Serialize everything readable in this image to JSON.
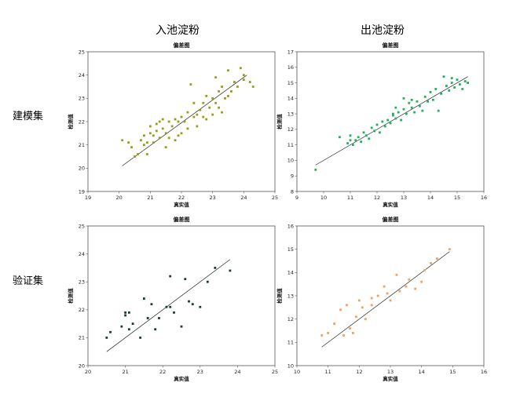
{
  "headers": {
    "col_left": "入池淀粉",
    "col_right": "出池淀粉",
    "row_top": "建模集",
    "row_bottom": "验证集"
  },
  "chart_data": [
    {
      "id": "in-model",
      "type": "scatter",
      "title": "偏差图",
      "xlabel": "真实值",
      "ylabel": "检测值",
      "xlim": [
        19,
        25
      ],
      "ylim": [
        19,
        25
      ],
      "xticks": [
        "19",
        "20",
        "21",
        "22",
        "23",
        "24",
        "25"
      ],
      "yticks": [
        "19",
        "20",
        "21",
        "22",
        "23",
        "24",
        "25"
      ],
      "color": "#9a9a1a",
      "fit": [
        [
          20.1,
          20.1
        ],
        [
          24.1,
          24.0
        ]
      ],
      "points": [
        [
          20.1,
          21.2
        ],
        [
          20.3,
          21.1
        ],
        [
          20.4,
          20.9
        ],
        [
          20.5,
          20.5
        ],
        [
          20.6,
          20.6
        ],
        [
          20.7,
          21.2
        ],
        [
          20.8,
          21.0
        ],
        [
          20.8,
          21.4
        ],
        [
          20.9,
          21.1
        ],
        [
          21.0,
          21.5
        ],
        [
          21.0,
          21.8
        ],
        [
          21.1,
          21.4
        ],
        [
          21.2,
          21.6
        ],
        [
          21.2,
          21.9
        ],
        [
          21.3,
          21.3
        ],
        [
          21.4,
          22.1
        ],
        [
          21.4,
          21.7
        ],
        [
          21.5,
          21.5
        ],
        [
          21.5,
          20.9
        ],
        [
          21.6,
          22.0
        ],
        [
          21.6,
          21.3
        ],
        [
          21.7,
          21.8
        ],
        [
          21.8,
          22.1
        ],
        [
          21.8,
          21.2
        ],
        [
          21.9,
          22.0
        ],
        [
          22.0,
          22.2
        ],
        [
          22.0,
          21.5
        ],
        [
          22.1,
          22.0
        ],
        [
          22.2,
          21.7
        ],
        [
          22.2,
          22.4
        ],
        [
          22.3,
          23.6
        ],
        [
          22.4,
          22.2
        ],
        [
          22.4,
          22.8
        ],
        [
          22.5,
          21.8
        ],
        [
          22.5,
          22.3
        ],
        [
          22.6,
          22.5
        ],
        [
          22.7,
          22.8
        ],
        [
          22.8,
          23.1
        ],
        [
          22.8,
          22.1
        ],
        [
          22.9,
          22.6
        ],
        [
          23.0,
          23.0
        ],
        [
          23.0,
          22.3
        ],
        [
          23.1,
          22.8
        ],
        [
          23.2,
          23.3
        ],
        [
          23.2,
          22.6
        ],
        [
          23.3,
          23.5
        ],
        [
          23.4,
          23.0
        ],
        [
          23.5,
          24.2
        ],
        [
          23.5,
          23.1
        ],
        [
          23.6,
          23.3
        ],
        [
          23.7,
          23.7
        ],
        [
          23.8,
          23.5
        ],
        [
          23.9,
          24.3
        ],
        [
          24.0,
          24.0
        ],
        [
          24.0,
          23.8
        ],
        [
          24.2,
          23.7
        ],
        [
          24.3,
          23.5
        ],
        [
          20.9,
          20.6
        ],
        [
          21.1,
          21.1
        ],
        [
          21.9,
          21.4
        ],
        [
          22.7,
          22.2
        ],
        [
          23.1,
          23.9
        ],
        [
          23.3,
          22.4
        ],
        [
          21.3,
          22.0
        ]
      ]
    },
    {
      "id": "out-model",
      "type": "scatter",
      "title": "偏差图",
      "xlabel": "真实值",
      "ylabel": "检测值",
      "xlim": [
        9,
        16
      ],
      "ylim": [
        8,
        17
      ],
      "xticks": [
        "9",
        "10",
        "11",
        "12",
        "13",
        "14",
        "15",
        "16"
      ],
      "yticks": [
        "8",
        "9",
        "10",
        "11",
        "12",
        "13",
        "14",
        "15",
        "16",
        "17"
      ],
      "color": "#22b05a",
      "fit": [
        [
          9.7,
          9.7
        ],
        [
          15.4,
          15.4
        ]
      ],
      "points": [
        [
          9.7,
          9.4
        ],
        [
          10.6,
          11.5
        ],
        [
          10.9,
          11.1
        ],
        [
          11.0,
          11.6
        ],
        [
          11.1,
          11.0
        ],
        [
          11.2,
          11.3
        ],
        [
          11.3,
          11.5
        ],
        [
          11.4,
          11.2
        ],
        [
          11.5,
          11.8
        ],
        [
          11.6,
          11.6
        ],
        [
          11.7,
          11.4
        ],
        [
          11.8,
          12.1
        ],
        [
          11.9,
          11.9
        ],
        [
          12.0,
          12.3
        ],
        [
          12.1,
          11.8
        ],
        [
          12.2,
          12.5
        ],
        [
          12.3,
          12.2
        ],
        [
          12.4,
          12.6
        ],
        [
          12.5,
          12.4
        ],
        [
          12.6,
          12.9
        ],
        [
          12.7,
          12.7
        ],
        [
          12.7,
          13.4
        ],
        [
          12.8,
          13.1
        ],
        [
          12.9,
          12.6
        ],
        [
          13.0,
          13.3
        ],
        [
          13.0,
          14.0
        ],
        [
          13.1,
          13.0
        ],
        [
          13.2,
          13.7
        ],
        [
          13.3,
          13.4
        ],
        [
          13.4,
          13.1
        ],
        [
          13.5,
          13.8
        ],
        [
          13.6,
          13.5
        ],
        [
          13.7,
          13.2
        ],
        [
          13.8,
          14.1
        ],
        [
          13.9,
          13.8
        ],
        [
          14.0,
          14.4
        ],
        [
          14.1,
          13.9
        ],
        [
          14.2,
          14.6
        ],
        [
          14.3,
          13.2
        ],
        [
          14.4,
          14.3
        ],
        [
          14.5,
          15.4
        ],
        [
          14.6,
          14.8
        ],
        [
          14.7,
          14.5
        ],
        [
          14.8,
          15.0
        ],
        [
          14.9,
          14.7
        ],
        [
          15.0,
          15.2
        ],
        [
          15.1,
          14.9
        ],
        [
          15.2,
          14.6
        ],
        [
          15.3,
          15.1
        ],
        [
          15.4,
          15.0
        ],
        [
          11.0,
          11.3
        ],
        [
          12.6,
          13.0
        ],
        [
          13.3,
          13.9
        ],
        [
          14.8,
          15.3
        ]
      ]
    },
    {
      "id": "in-valid",
      "type": "scatter",
      "title": "偏差图",
      "xlabel": "真实值",
      "ylabel": "检测值",
      "xlim": [
        20,
        25
      ],
      "ylim": [
        20,
        25
      ],
      "xticks": [
        "20",
        "21",
        "22",
        "23",
        "24",
        "25"
      ],
      "yticks": [
        "20",
        "21",
        "22",
        "23",
        "24",
        "25"
      ],
      "color": "#1a3d2a",
      "fit": [
        [
          20.5,
          20.5
        ],
        [
          23.8,
          23.8
        ]
      ],
      "points": [
        [
          20.5,
          21.0
        ],
        [
          20.6,
          21.2
        ],
        [
          20.9,
          21.4
        ],
        [
          21.0,
          21.8
        ],
        [
          21.0,
          21.9
        ],
        [
          21.1,
          21.3
        ],
        [
          21.2,
          21.5
        ],
        [
          21.4,
          21.0
        ],
        [
          21.5,
          22.4
        ],
        [
          21.6,
          21.7
        ],
        [
          21.7,
          22.2
        ],
        [
          21.8,
          21.3
        ],
        [
          21.9,
          21.7
        ],
        [
          22.1,
          22.1
        ],
        [
          22.2,
          23.2
        ],
        [
          22.3,
          21.9
        ],
        [
          22.5,
          21.4
        ],
        [
          22.6,
          23.1
        ],
        [
          22.7,
          22.3
        ],
        [
          22.8,
          22.2
        ],
        [
          23.0,
          22.1
        ],
        [
          23.2,
          23.0
        ],
        [
          23.4,
          23.5
        ],
        [
          23.8,
          23.4
        ],
        [
          21.1,
          21.9
        ],
        [
          22.2,
          22.1
        ]
      ]
    },
    {
      "id": "out-valid",
      "type": "scatter",
      "title": "偏差图",
      "xlabel": "真实值",
      "ylabel": "检测值",
      "xlim": [
        10,
        16
      ],
      "ylim": [
        10,
        16
      ],
      "xticks": [
        "10",
        "11",
        "12",
        "13",
        "14",
        "15",
        "16"
      ],
      "yticks": [
        "10",
        "11",
        "12",
        "13",
        "14",
        "15",
        "16"
      ],
      "color": "#f0a060",
      "fit": [
        [
          10.8,
          10.8
        ],
        [
          14.9,
          14.9
        ]
      ],
      "points": [
        [
          10.8,
          11.3
        ],
        [
          11.0,
          11.4
        ],
        [
          11.2,
          11.8
        ],
        [
          11.4,
          12.4
        ],
        [
          11.5,
          11.3
        ],
        [
          11.7,
          11.6
        ],
        [
          11.8,
          11.4
        ],
        [
          11.9,
          12.1
        ],
        [
          12.0,
          12.8
        ],
        [
          12.1,
          12.5
        ],
        [
          12.2,
          12.0
        ],
        [
          12.4,
          12.6
        ],
        [
          12.6,
          13.0
        ],
        [
          12.8,
          13.4
        ],
        [
          12.9,
          13.1
        ],
        [
          13.0,
          12.8
        ],
        [
          13.2,
          13.9
        ],
        [
          13.3,
          13.2
        ],
        [
          13.5,
          13.4
        ],
        [
          13.6,
          13.7
        ],
        [
          13.8,
          13.3
        ],
        [
          14.0,
          13.6
        ],
        [
          14.1,
          14.1
        ],
        [
          14.3,
          14.4
        ],
        [
          14.5,
          14.6
        ],
        [
          14.9,
          15.0
        ],
        [
          11.6,
          12.6
        ],
        [
          12.4,
          12.9
        ]
      ]
    }
  ]
}
